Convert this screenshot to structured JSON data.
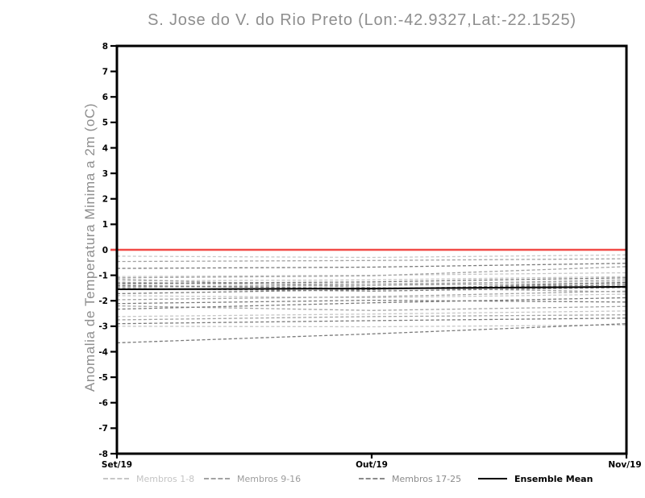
{
  "colors": {
    "background": "#ffffff",
    "frame": "#000000",
    "title_text": "#8e8e8e",
    "axis_label_text": "#8e8e8e",
    "tick_text": "#000000",
    "zero_line": "#f14b47",
    "members_1_8": "#c7c7c7",
    "members_9_16": "#a3a3a3",
    "members_17_25": "#7b7b7b",
    "ensemble_mean": "#000000"
  },
  "legend": [
    {
      "label": "Membros 1-8",
      "style": "dashed",
      "line_color": "#c7c7c7",
      "text_color": "#c4c4c4"
    },
    {
      "label": "Membros 9-16",
      "style": "dashed",
      "line_color": "#a3a3a3",
      "text_color": "#9c9c9c"
    },
    {
      "label": "Membros 17-25",
      "style": "dashed",
      "line_color": "#8b8b8b",
      "text_color": "#8b8b8b"
    },
    {
      "label": "Ensemble Mean",
      "style": "solid",
      "line_color": "#000000",
      "text_color": "#000000"
    }
  ],
  "chart_data": {
    "type": "line",
    "title": "S. Jose do V. do Rio Preto (Lon:-42.9327,Lat:-22.1525)",
    "xlabel": "",
    "ylabel": "Anomalia de Temperatura Minima a 2m (oC)",
    "x_categories": [
      "Set/19",
      "Out/19",
      "Nov/19"
    ],
    "ylim": [
      -8,
      8
    ],
    "yticks": [
      "8",
      "7",
      "6",
      "5",
      "4",
      "3",
      "2",
      "1",
      "0",
      "-1",
      "-2",
      "-3",
      "-4",
      "-5",
      "-6",
      "-7",
      "-8"
    ],
    "grid": false,
    "legend_position": "bottom",
    "zero_reference_line": 0,
    "zero_line_color": "#f14b47",
    "series": [
      {
        "name": "Membro 1",
        "group": "1-8",
        "style": "dashed",
        "color": "#c7c7c7",
        "values": [
          -0.25,
          -0.3,
          -0.2
        ]
      },
      {
        "name": "Membro 2",
        "group": "1-8",
        "style": "dashed",
        "color": "#c7c7c7",
        "values": [
          -1.05,
          -1.0,
          -0.9
        ]
      },
      {
        "name": "Membro 3",
        "group": "1-8",
        "style": "dashed",
        "color": "#c7c7c7",
        "values": [
          -1.22,
          -1.18,
          -1.05
        ]
      },
      {
        "name": "Membro 4",
        "group": "1-8",
        "style": "dashed",
        "color": "#c7c7c7",
        "values": [
          -1.35,
          -1.32,
          -1.25
        ]
      },
      {
        "name": "Membro 5",
        "group": "1-8",
        "style": "dashed",
        "color": "#c7c7c7",
        "values": [
          -1.48,
          -1.4,
          -1.3
        ]
      },
      {
        "name": "Membro 6",
        "group": "1-8",
        "style": "dashed",
        "color": "#c7c7c7",
        "values": [
          -1.8,
          -1.88,
          -1.74
        ]
      },
      {
        "name": "Membro 7",
        "group": "1-8",
        "style": "dashed",
        "color": "#c7c7c7",
        "values": [
          -3.0,
          -3.02,
          -2.95
        ]
      },
      {
        "name": "Membro 8",
        "group": "1-8",
        "style": "dashed",
        "color": "#c7c7c7",
        "values": [
          -2.62,
          -2.52,
          -2.4
        ]
      },
      {
        "name": "Membro 9",
        "group": "9-16",
        "style": "dashed",
        "color": "#a3a3a3",
        "values": [
          -0.46,
          -0.42,
          -0.35
        ]
      },
      {
        "name": "Membro 10",
        "group": "9-16",
        "style": "dashed",
        "color": "#a3a3a3",
        "values": [
          -1.1,
          -1.02,
          -0.66
        ]
      },
      {
        "name": "Membro 11",
        "group": "9-16",
        "style": "dashed",
        "color": "#a3a3a3",
        "values": [
          -1.28,
          -1.38,
          -1.32
        ]
      },
      {
        "name": "Membro 12",
        "group": "9-16",
        "style": "dashed",
        "color": "#a3a3a3",
        "values": [
          -1.45,
          -1.38,
          -1.18
        ]
      },
      {
        "name": "Membro 13",
        "group": "9-16",
        "style": "dashed",
        "color": "#a3a3a3",
        "values": [
          -1.96,
          -1.84,
          -1.62
        ]
      },
      {
        "name": "Membro 14",
        "group": "9-16",
        "style": "dashed",
        "color": "#a3a3a3",
        "values": [
          -2.2,
          -2.38,
          -2.22
        ]
      },
      {
        "name": "Membro 15",
        "group": "9-16",
        "style": "dashed",
        "color": "#a3a3a3",
        "values": [
          -2.75,
          -2.62,
          -2.55
        ]
      },
      {
        "name": "Membro 16",
        "group": "9-16",
        "style": "dashed",
        "color": "#a3a3a3",
        "values": [
          -1.15,
          -1.48,
          -1.65
        ]
      },
      {
        "name": "Membro 17",
        "group": "17-25",
        "style": "dashed",
        "color": "#7b7b7b",
        "values": [
          -0.73,
          -0.68,
          -0.53
        ]
      },
      {
        "name": "Membro 18",
        "group": "17-25",
        "style": "dashed",
        "color": "#7b7b7b",
        "values": [
          -1.32,
          -1.26,
          -1.1
        ]
      },
      {
        "name": "Membro 19",
        "group": "17-25",
        "style": "dashed",
        "color": "#7b7b7b",
        "values": [
          -1.4,
          -1.52,
          -1.38
        ]
      },
      {
        "name": "Membro 20",
        "group": "17-25",
        "style": "dashed",
        "color": "#7b7b7b",
        "values": [
          -1.52,
          -1.62,
          -1.48
        ]
      },
      {
        "name": "Membro 21",
        "group": "17-25",
        "style": "dashed",
        "color": "#7b7b7b",
        "values": [
          -1.72,
          -1.56,
          -1.28
        ]
      },
      {
        "name": "Membro 22",
        "group": "17-25",
        "style": "dashed",
        "color": "#7b7b7b",
        "values": [
          -2.11,
          -1.98,
          -2.05
        ]
      },
      {
        "name": "Membro 23",
        "group": "17-25",
        "style": "dashed",
        "color": "#7b7b7b",
        "values": [
          -2.33,
          -2.08,
          -1.88
        ]
      },
      {
        "name": "Membro 24",
        "group": "17-25",
        "style": "dashed",
        "color": "#7b7b7b",
        "values": [
          -2.9,
          -2.78,
          -2.68
        ]
      },
      {
        "name": "Membro 25",
        "group": "17-25",
        "style": "dashed",
        "color": "#7b7b7b",
        "values": [
          -3.65,
          -3.3,
          -2.9
        ]
      },
      {
        "name": "Ensemble Mean",
        "group": "mean",
        "style": "solid",
        "color": "#000000",
        "values": [
          -1.55,
          -1.52,
          -1.45
        ]
      }
    ]
  }
}
